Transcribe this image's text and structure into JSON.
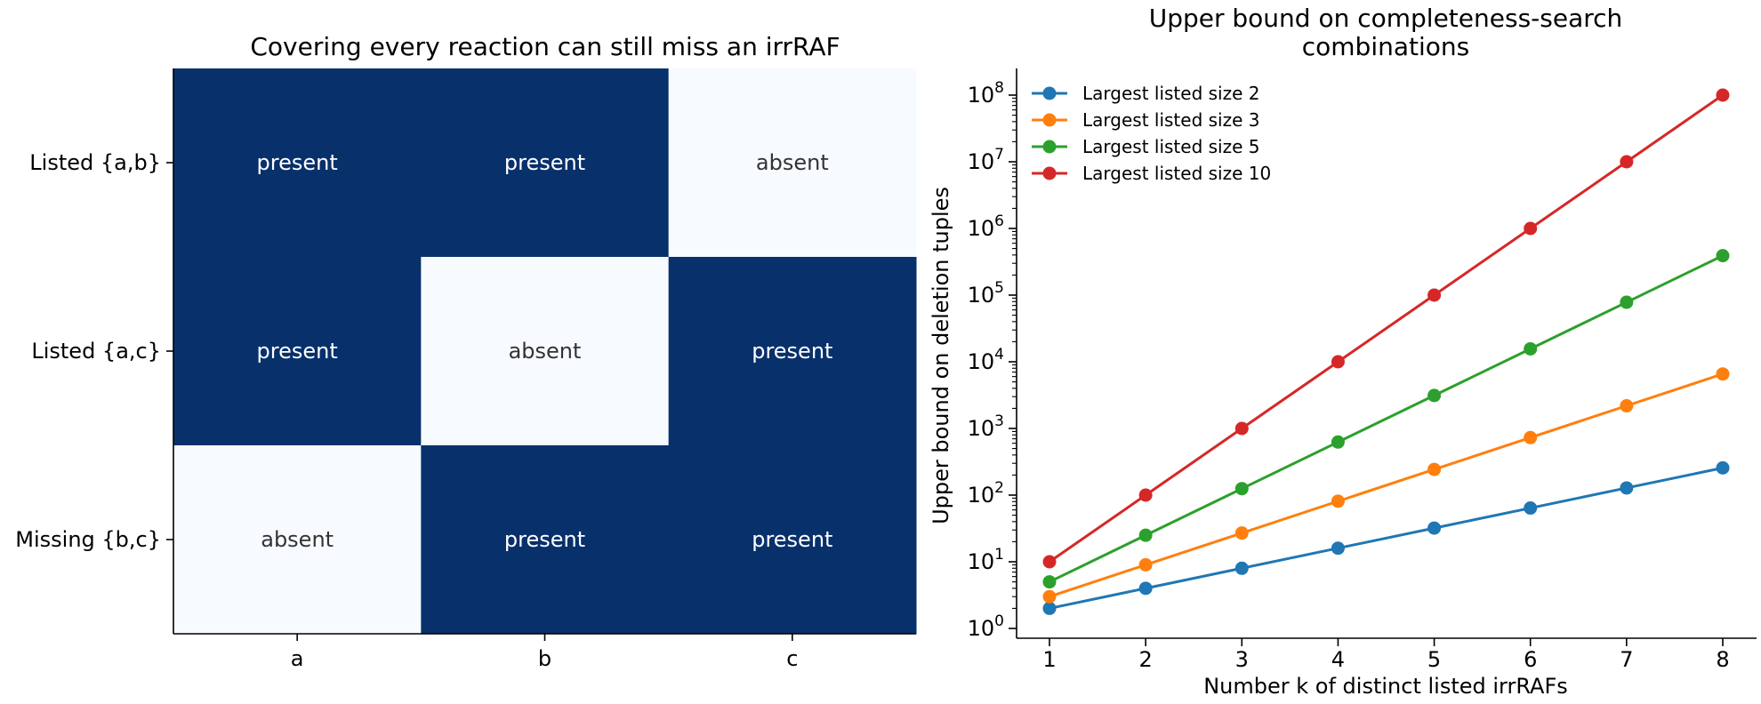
{
  "chart_data": [
    {
      "type": "heatmap",
      "title": "Covering every reaction can still miss an irrRAF",
      "rows": [
        "Listed {a,b}",
        "Listed {a,c}",
        "Missing {b,c}"
      ],
      "columns": [
        "a",
        "b",
        "c"
      ],
      "cells": [
        [
          "present",
          "present",
          "absent"
        ],
        [
          "present",
          "absent",
          "present"
        ],
        [
          "absent",
          "present",
          "present"
        ]
      ],
      "colors": {
        "present": "#08306b",
        "absent": "#f7fbff",
        "present_text": "#ffffff",
        "absent_text": "#333333"
      }
    },
    {
      "type": "line",
      "title": "Upper bound on completeness-search combinations",
      "title_lines": [
        "Upper bound on completeness-search",
        "combinations"
      ],
      "xlabel": "Number k of distinct listed irrRAFs",
      "ylabel": "Upper bound on deletion tuples",
      "x": [
        1,
        2,
        3,
        4,
        5,
        6,
        7,
        8
      ],
      "yscale": "log",
      "ylim": [
        1,
        100000000
      ],
      "legend_position": "top-left",
      "series": [
        {
          "name": "Largest listed size 2",
          "color": "#1f77b4",
          "values": [
            2,
            4,
            8,
            16,
            32,
            64,
            128,
            256
          ]
        },
        {
          "name": "Largest listed size 3",
          "color": "#ff7f0e",
          "values": [
            3,
            9,
            27,
            81,
            243,
            729,
            2187,
            6561
          ]
        },
        {
          "name": "Largest listed size 5",
          "color": "#2ca02c",
          "values": [
            5,
            25,
            125,
            625,
            3125,
            15625,
            78125,
            390625
          ]
        },
        {
          "name": "Largest listed size 10",
          "color": "#d62728",
          "values": [
            10,
            100,
            1000,
            10000,
            100000,
            1000000,
            10000000,
            100000000
          ]
        }
      ]
    }
  ]
}
